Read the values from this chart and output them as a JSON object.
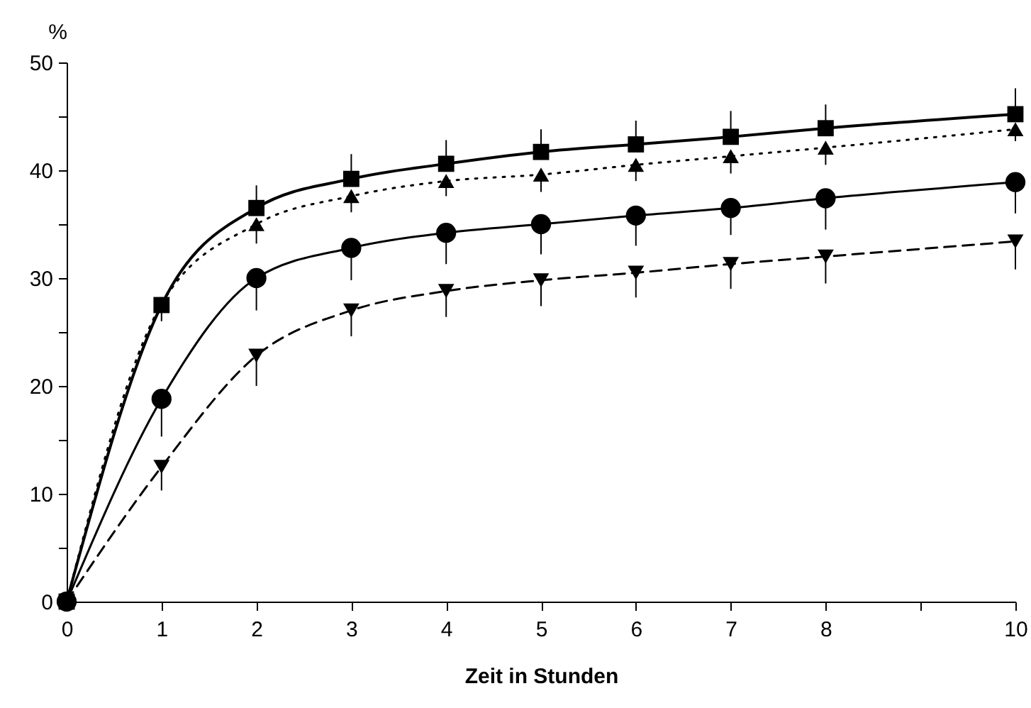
{
  "chart_data": {
    "type": "line",
    "xlabel": "Zeit in Stunden",
    "ylabel": "%",
    "x": [
      0,
      1,
      2,
      3,
      4,
      5,
      6,
      7,
      8,
      10
    ],
    "xlim": [
      0,
      10
    ],
    "xticks": [
      0,
      1,
      2,
      3,
      4,
      5,
      6,
      7,
      8,
      {
        "value": 9,
        "label": null
      },
      10
    ],
    "ylim": [
      0,
      50
    ],
    "yticks": [
      0,
      {
        "value": 5,
        "label": null
      },
      10,
      {
        "value": 15,
        "label": null
      },
      20,
      {
        "value": 25,
        "label": null
      },
      30,
      {
        "value": 35,
        "label": null
      },
      40,
      {
        "value": 45,
        "label": null
      },
      50
    ],
    "grid": false,
    "series": [
      {
        "color": "#000000",
        "marker": "square",
        "line_style": "solid",
        "values": [
          0,
          27.5,
          36.5,
          39.2,
          40.6,
          41.7,
          42.4,
          43.1,
          43.9,
          45.2
        ],
        "errors": [
          null,
          null,
          [
            36.5,
            38.6
          ],
          [
            39.2,
            41.5
          ],
          [
            40.6,
            42.8
          ],
          [
            41.7,
            43.8
          ],
          [
            42.4,
            44.6
          ],
          [
            43.1,
            45.5
          ],
          [
            43.9,
            46.1
          ],
          [
            45.2,
            47.6
          ]
        ]
      },
      {
        "color": "#000000",
        "marker": "triangle",
        "line_style": "dotted",
        "values": [
          0,
          27.6,
          35,
          37.6,
          39,
          39.6,
          40.5,
          41.3,
          42.1,
          43.8
        ],
        "errors": [
          null,
          [
            26,
            27.6
          ],
          [
            33.2,
            35
          ],
          [
            36.1,
            37.6
          ],
          [
            37.6,
            39
          ],
          [
            38,
            39.6
          ],
          [
            39,
            40.5
          ],
          [
            39.7,
            41.3
          ],
          [
            40.5,
            42.1
          ],
          [
            42.7,
            43.8
          ]
        ]
      },
      {
        "color": "#000000",
        "marker": "circle",
        "line_style": "solid",
        "values": [
          0,
          18.8,
          30,
          32.8,
          34.2,
          35,
          35.8,
          36.5,
          37.4,
          38.9
        ],
        "errors": [
          null,
          [
            15.3,
            18.8
          ],
          [
            27,
            30
          ],
          [
            29.8,
            32.8
          ],
          [
            31.3,
            34.2
          ],
          [
            32.2,
            35
          ],
          [
            33,
            35.8
          ],
          [
            34,
            36.5
          ],
          [
            34.5,
            37.4
          ],
          [
            36,
            38.9
          ]
        ]
      },
      {
        "color": "#000000",
        "marker": "triangle-down",
        "line_style": "dashed",
        "values": [
          0,
          12.5,
          22.8,
          27,
          28.8,
          29.8,
          30.5,
          31.3,
          32,
          33.4
        ],
        "errors": [
          null,
          [
            10.3,
            12.5
          ],
          [
            20,
            22.8
          ],
          [
            24.6,
            27
          ],
          [
            26.4,
            28.8
          ],
          [
            27.4,
            29.8
          ],
          [
            28.2,
            30.5
          ],
          [
            29,
            31.3
          ],
          [
            29.5,
            32
          ],
          [
            30.8,
            33.4
          ]
        ]
      }
    ]
  }
}
